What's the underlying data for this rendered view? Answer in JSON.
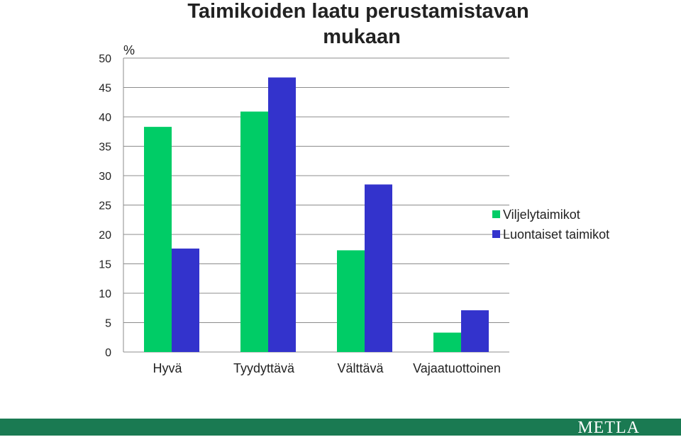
{
  "title_lines": [
    "Taimikoiden laatu perustamistavan",
    "mukaan"
  ],
  "footer": {
    "logo_text": "METLA"
  },
  "chart_data": {
    "type": "bar",
    "title": "Taimikoiden laatu perustamistavan mukaan",
    "ylabel": "%",
    "xlabel": "",
    "ylim": [
      0,
      50
    ],
    "yticks": [
      0,
      5,
      10,
      15,
      20,
      25,
      30,
      35,
      40,
      45,
      50
    ],
    "grid": true,
    "legend_position": "right",
    "categories": [
      "Hyvä",
      "Tyydyttävä",
      "Välttävä",
      "Vajaatuottoinen"
    ],
    "series": [
      {
        "name": "Viljelytaimikot",
        "color": "#00cc66",
        "values": [
          38.3,
          40.9,
          17.3,
          3.3
        ]
      },
      {
        "name": "Luontaiset taimikot",
        "color": "#3333cc",
        "values": [
          17.6,
          46.7,
          28.5,
          7.1
        ]
      }
    ]
  }
}
